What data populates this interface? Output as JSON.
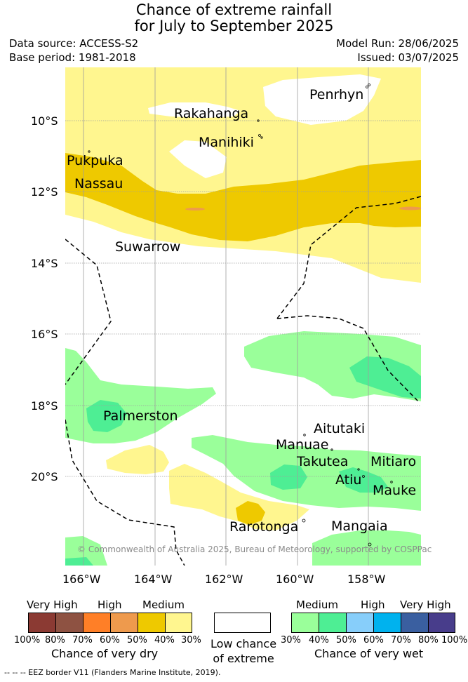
{
  "title": {
    "line1": "Chance of extreme rainfall",
    "line2": "for July to September 2025"
  },
  "meta": {
    "data_source": "Data source: ACCESS-S2",
    "base_period": "Base period: 1981-2018",
    "model_run": "Model Run: 28/06/2025",
    "issued": "Issued: 03/07/2025"
  },
  "axes": {
    "lat_labels": [
      "10°S",
      "12°S",
      "14°S",
      "16°S",
      "18°S",
      "20°S"
    ],
    "lon_labels": [
      "166°W",
      "164°W",
      "162°W",
      "160°W",
      "158°W"
    ]
  },
  "places": {
    "penrhyn": "Penrhyn",
    "rakahanga": "Rakahanga",
    "manihiki": "Manihiki",
    "pukpuka": "Pukpuka",
    "nassau": "Nassau",
    "suwarrow": "Suwarrow",
    "palmerston": "Palmerston",
    "aitutaki": "Aitutaki",
    "manuae": "Manuae",
    "takutea": "Takutea",
    "mitiaro": "Mitiaro",
    "atiu": "Atiu",
    "mauke": "Mauke",
    "rarotonga": "Rarotonga",
    "mangaia": "Mangaia"
  },
  "copyright": "© Commonwealth of Australia 2025, Bureau of Meteorology, supported by COSPPac",
  "legend": {
    "dry": {
      "headers": [
        "Very High",
        "High",
        "Medium"
      ],
      "ticks": [
        "100%",
        "80%",
        "70%",
        "60%",
        "50%",
        "40%",
        "30%"
      ],
      "caption": "Chance of very dry",
      "colors": [
        "#8b3a33",
        "#8e5242",
        "#ff7f27",
        "#ee9a4d",
        "#eec900",
        "#fff68f"
      ]
    },
    "low": {
      "line1": "Low chance",
      "line2": "of extreme",
      "color": "#ffffff"
    },
    "wet": {
      "headers": [
        "Medium",
        "High",
        "Very High"
      ],
      "ticks": [
        "30%",
        "40%",
        "50%",
        "60%",
        "70%",
        "80%",
        "100%"
      ],
      "caption": "Chance of very wet",
      "colors": [
        "#9aff9a",
        "#4eee94",
        "#87cefa",
        "#00b2ee",
        "#3a5fa0",
        "#483d8b"
      ]
    }
  },
  "footer": "--  --  -- EEZ border V11 (Flanders Marine Institute, 2019).",
  "colors": {
    "light_yellow": "#fff68f",
    "gold": "#eec900",
    "orange": "#ee9a4d",
    "light_green": "#9aff9a",
    "green": "#4eee94",
    "grid": "#9e9e9e"
  }
}
